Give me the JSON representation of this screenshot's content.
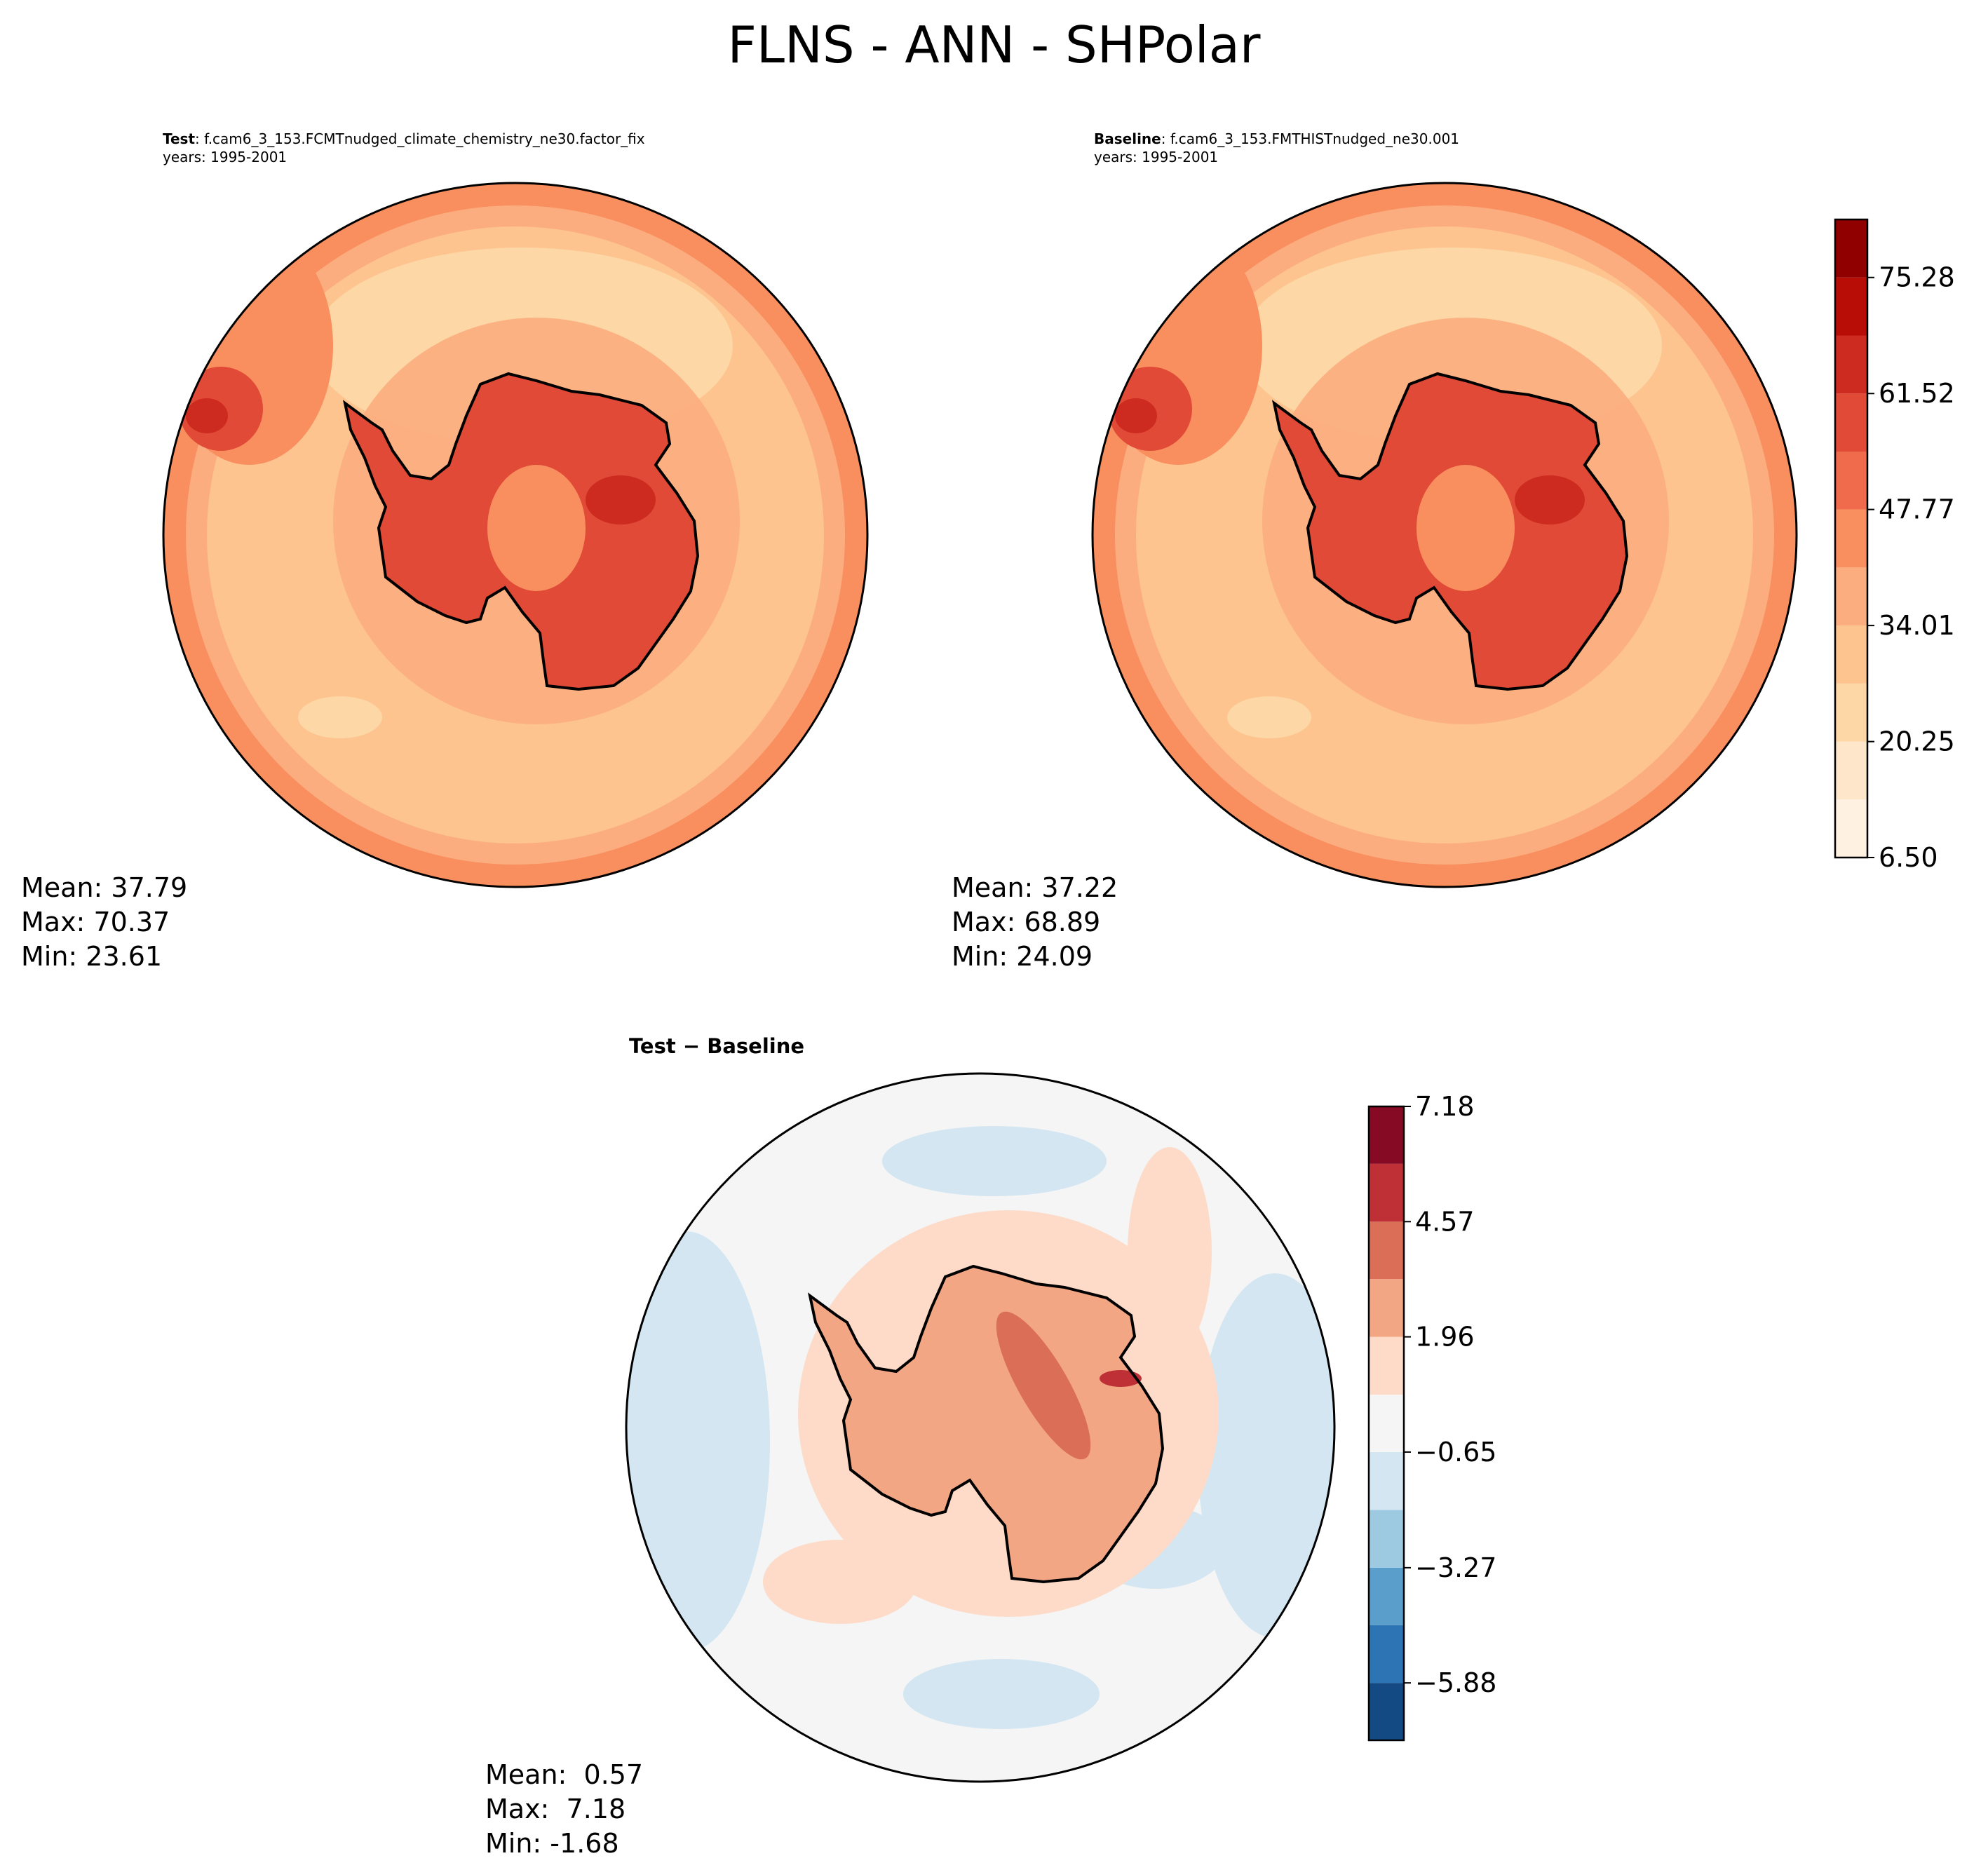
{
  "suptitle": "FLNS - ANN - SHPolar",
  "panels": {
    "test": {
      "label_bold": "Test",
      "case": ": f.cam6_3_153.FCMTnudged_climate_chemistry_ne30.factor_fix",
      "years": "years: 1995-2001",
      "stats": {
        "mean": "Mean: 37.79",
        "max": "Max: 70.37",
        "min": "Min: 23.61"
      }
    },
    "baseline": {
      "label_bold": "Baseline",
      "case": ": f.cam6_3_153.FMTHISTnudged_ne30.001",
      "years": "years: 1995-2001",
      "stats": {
        "mean": "Mean: 37.22",
        "max": "Max: 68.89",
        "min": "Min: 24.09"
      }
    },
    "diff": {
      "title": "Test − Baseline",
      "stats": {
        "mean": "Mean:  0.57",
        "max": "Max:  7.18",
        "min": "Min: -1.68"
      }
    }
  },
  "chart_data": [
    {
      "type": "heatmap",
      "name": "Test",
      "projection": "south polar stereographic",
      "colormap": "OrRd",
      "summary": {
        "mean": 37.79,
        "max": 70.37,
        "min": 23.61
      }
    },
    {
      "type": "heatmap",
      "name": "Baseline",
      "projection": "south polar stereographic",
      "colormap": "OrRd",
      "summary": {
        "mean": 37.22,
        "max": 68.89,
        "min": 24.09
      }
    },
    {
      "type": "heatmap",
      "name": "Test − Baseline",
      "projection": "south polar stereographic",
      "colormap": "RdBu_r",
      "summary": {
        "mean": 0.57,
        "max": 7.18,
        "min": -1.68
      }
    }
  ],
  "colorbars": {
    "main": {
      "vmin": 6.5,
      "vmax": 82.16,
      "levels": [
        6.5,
        13.38,
        20.25,
        27.13,
        34.01,
        40.89,
        47.77,
        54.64,
        61.52,
        68.4,
        75.28,
        82.16
      ],
      "colors": [
        "#fff1e2",
        "#fde6c9",
        "#fdd7a5",
        "#fdc48f",
        "#fcad7f",
        "#f98e5e",
        "#f06b4b",
        "#e04a36",
        "#cd2b1f",
        "#b80d07",
        "#900000"
      ],
      "tick_labels": [
        "6.50",
        "20.25",
        "34.01",
        "47.77",
        "61.52",
        "75.28"
      ]
    },
    "diff": {
      "vmin": -7.18,
      "vmax": 7.18,
      "levels": [
        -7.18,
        -5.88,
        -4.57,
        -3.27,
        -1.96,
        -0.65,
        0.65,
        1.96,
        3.27,
        4.57,
        5.88,
        7.18
      ],
      "colors": [
        "#134a83",
        "#2c74b4",
        "#5a9fcb",
        "#9dcae0",
        "#d3e6f1",
        "#f5f5f5",
        "#fddbc8",
        "#f3a684",
        "#db6e57",
        "#be2f36",
        "#870a24"
      ],
      "tick_labels": [
        "−5.88",
        "−3.27",
        "−0.65",
        "1.96",
        "4.57",
        "7.18"
      ]
    }
  },
  "field_colors": {
    "ocean_main": "#fdc48f",
    "ocean_alt": "#fcad7f",
    "ring": "#f98e5e",
    "light": "#fdd7a5",
    "land": "#e04a36",
    "land_core": "#cd2b1f",
    "diff_neutral": "#f5f5f5",
    "diff_pos": "#fddbc8",
    "diff_neg": "#d3e6f1",
    "diff_strong": "#db6e57"
  }
}
